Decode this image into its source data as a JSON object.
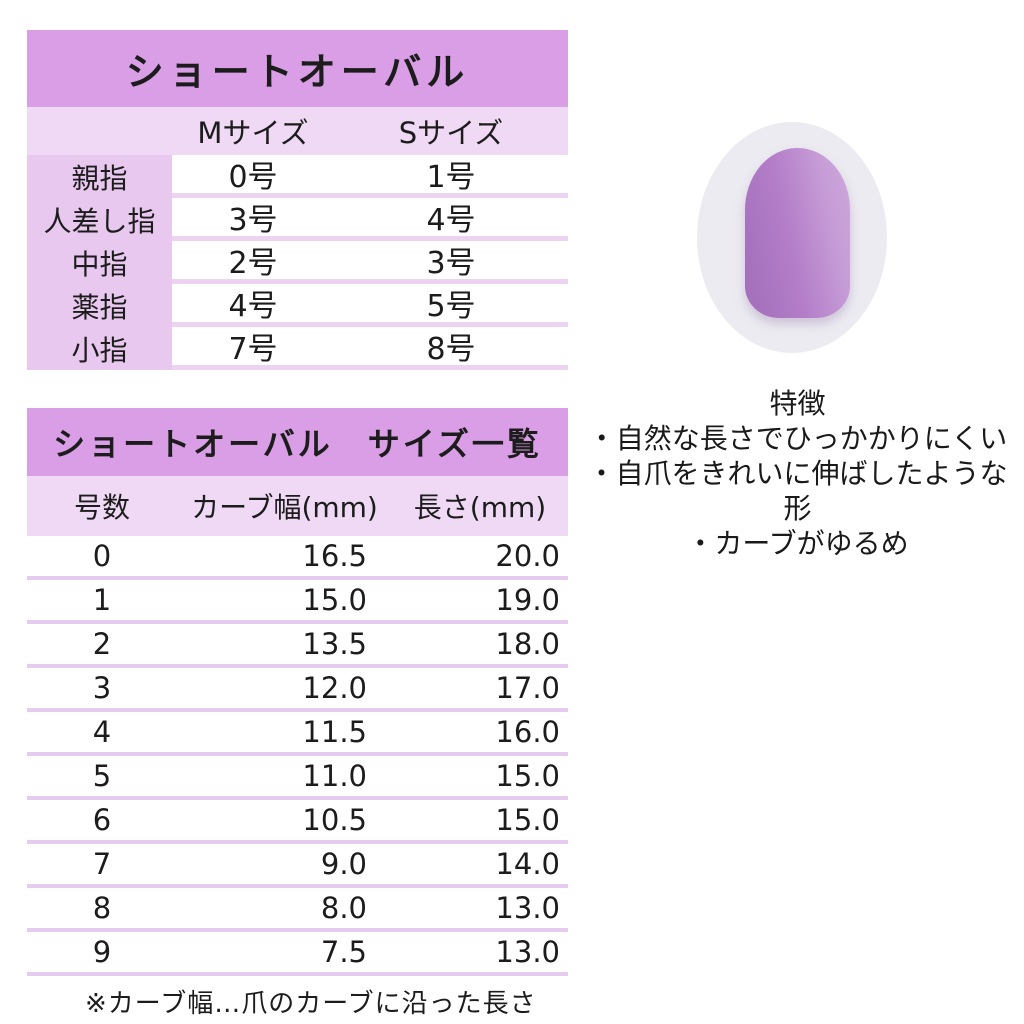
{
  "colors": {
    "header_purple": "#d99ee6",
    "band_light_purple": "#efd9f4",
    "label_column_purple": "#e8c8ef",
    "row_gap_purple": "#ecd3f1",
    "separator_purple": "#e7cbee",
    "nail_bg_gray": "#ecebf1",
    "nail_purple": "#b37dc8",
    "text": "#1c1c1c"
  },
  "size_chart": {
    "title": "ショートオーバル",
    "col_headers": [
      "Mサイズ",
      "Sサイズ"
    ],
    "rows": [
      {
        "finger": "親指",
        "m": "0号",
        "s": "1号"
      },
      {
        "finger": "人差し指",
        "m": "3号",
        "s": "4号"
      },
      {
        "finger": "中指",
        "m": "2号",
        "s": "3号"
      },
      {
        "finger": "薬指",
        "m": "4号",
        "s": "5号"
      },
      {
        "finger": "小指",
        "m": "7号",
        "s": "8号"
      }
    ]
  },
  "size_list": {
    "title": "ショートオーバル　サイズ一覧",
    "col_headers": [
      "号数",
      "カーブ幅(mm)",
      "長さ(mm)"
    ],
    "rows": [
      {
        "no": "0",
        "curve": "16.5",
        "len": "20.0"
      },
      {
        "no": "1",
        "curve": "15.0",
        "len": "19.0"
      },
      {
        "no": "2",
        "curve": "13.5",
        "len": "18.0"
      },
      {
        "no": "3",
        "curve": "12.0",
        "len": "17.0"
      },
      {
        "no": "4",
        "curve": "11.5",
        "len": "16.0"
      },
      {
        "no": "5",
        "curve": "11.0",
        "len": "15.0"
      },
      {
        "no": "6",
        "curve": "10.5",
        "len": "15.0"
      },
      {
        "no": "7",
        "curve": "9.0",
        "len": "14.0"
      },
      {
        "no": "8",
        "curve": "8.0",
        "len": "13.0"
      },
      {
        "no": "9",
        "curve": "7.5",
        "len": "13.0"
      }
    ],
    "footnote": "※カーブ幅…爪のカーブに沿った長さ"
  },
  "features": {
    "title": "特徴",
    "items": [
      "・自然な長さでひっかかりにくい",
      "・自爪をきれいに伸ばしたような形",
      "・カーブがゆるめ"
    ]
  },
  "nail_image": {
    "label": "short-oval-purple-nail-tip"
  }
}
